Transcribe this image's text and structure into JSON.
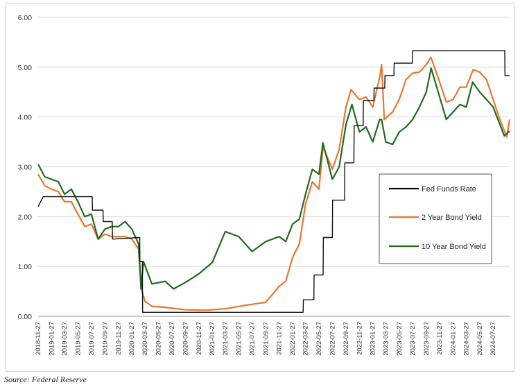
{
  "source_note": "Source: Federal Reserve",
  "chart_data": {
    "type": "line",
    "ylim": [
      0,
      6
    ],
    "yticks": [
      "0.00",
      "1.00",
      "2.00",
      "3.00",
      "4.00",
      "5.00",
      "6.00"
    ],
    "grid": "horizontal",
    "legend_position": "right",
    "x_tick_labels": [
      "2018-11-27",
      "2019-01-27",
      "2019-03-27",
      "2019-05-27",
      "2019-07-27",
      "2019-09-27",
      "2019-11-27",
      "2020-01-27",
      "2020-03-27",
      "2020-05-27",
      "2020-07-27",
      "2020-09-27",
      "2020-11-27",
      "2021-01-27",
      "2021-03-27",
      "2021-05-27",
      "2021-07-27",
      "2021-09-27",
      "2021-11-27",
      "2022-01-27",
      "2022-03-27",
      "2022-05-27",
      "2022-07-27",
      "2022-09-27",
      "2022-11-27",
      "2023-01-27",
      "2023-03-27",
      "2023-05-27",
      "2023-07-27",
      "2023-09-27",
      "2023-11-27",
      "2024-01-27",
      "2024-03-27",
      "2024-05-27",
      "2024-07-27"
    ],
    "series": [
      {
        "name": "Fed Funds Rate",
        "color": "#111111",
        "x": [
          "2018-11-27",
          "2018-12-20",
          "2019-07-31",
          "2019-08-01",
          "2019-09-18",
          "2019-09-19",
          "2019-10-30",
          "2019-10-31",
          "2020-03-03",
          "2020-03-04",
          "2020-03-15",
          "2020-03-16",
          "2022-03-16",
          "2022-03-17",
          "2022-05-04",
          "2022-05-05",
          "2022-06-15",
          "2022-06-16",
          "2022-07-27",
          "2022-07-28",
          "2022-09-21",
          "2022-09-22",
          "2022-11-02",
          "2022-11-03",
          "2022-12-14",
          "2022-12-15",
          "2023-02-01",
          "2023-02-02",
          "2023-03-22",
          "2023-03-23",
          "2023-05-03",
          "2023-05-04",
          "2023-07-26",
          "2023-07-27",
          "2024-09-18",
          "2024-09-19",
          "2024-10-10"
        ],
        "values": [
          2.2,
          2.4,
          2.4,
          2.13,
          2.13,
          1.9,
          1.9,
          1.55,
          1.58,
          1.1,
          1.1,
          0.08,
          0.08,
          0.33,
          0.33,
          0.83,
          0.83,
          1.58,
          1.58,
          2.33,
          2.33,
          3.08,
          3.08,
          3.83,
          3.83,
          4.33,
          4.33,
          4.58,
          4.58,
          4.83,
          4.83,
          5.08,
          5.08,
          5.33,
          5.33,
          4.83,
          4.83
        ]
      },
      {
        "name": "2 Year Bond Yield",
        "color": "#e8772e",
        "x": [
          "2018-11-27",
          "2018-12-27",
          "2019-01-27",
          "2019-02-27",
          "2019-03-27",
          "2019-04-27",
          "2019-05-27",
          "2019-06-27",
          "2019-07-27",
          "2019-08-27",
          "2019-09-27",
          "2019-10-27",
          "2019-11-27",
          "2019-12-27",
          "2020-01-27",
          "2020-02-27",
          "2020-03-10",
          "2020-03-27",
          "2020-04-27",
          "2020-06-27",
          "2020-09-27",
          "2020-12-27",
          "2021-03-27",
          "2021-06-27",
          "2021-09-27",
          "2021-11-27",
          "2021-12-27",
          "2022-01-27",
          "2022-02-27",
          "2022-03-27",
          "2022-04-27",
          "2022-05-27",
          "2022-06-15",
          "2022-07-27",
          "2022-08-27",
          "2022-09-27",
          "2022-10-20",
          "2022-11-27",
          "2022-12-27",
          "2023-01-27",
          "2023-02-27",
          "2023-03-08",
          "2023-03-20",
          "2023-04-27",
          "2023-05-27",
          "2023-06-27",
          "2023-07-27",
          "2023-08-27",
          "2023-09-27",
          "2023-10-18",
          "2023-11-27",
          "2023-12-27",
          "2024-01-27",
          "2024-02-27",
          "2024-03-27",
          "2024-04-27",
          "2024-05-27",
          "2024-06-27",
          "2024-07-27",
          "2024-08-27",
          "2024-09-27",
          "2024-10-10"
        ],
        "values": [
          2.85,
          2.62,
          2.55,
          2.5,
          2.3,
          2.3,
          2.05,
          1.8,
          1.85,
          1.55,
          1.65,
          1.6,
          1.6,
          1.6,
          1.55,
          1.35,
          0.55,
          0.3,
          0.2,
          0.18,
          0.13,
          0.12,
          0.15,
          0.22,
          0.28,
          0.6,
          0.7,
          1.18,
          1.45,
          2.25,
          2.7,
          2.55,
          3.4,
          2.95,
          3.35,
          4.2,
          4.55,
          4.35,
          4.4,
          4.2,
          4.8,
          5.05,
          3.95,
          4.1,
          4.35,
          4.75,
          4.88,
          4.9,
          5.05,
          5.2,
          4.7,
          4.3,
          4.35,
          4.6,
          4.6,
          4.95,
          4.9,
          4.75,
          4.35,
          3.95,
          3.6,
          3.95
        ]
      },
      {
        "name": "10 Year Bond Yield",
        "color": "#1e6b1e",
        "x": [
          "2018-11-27",
          "2018-12-27",
          "2019-01-27",
          "2019-02-27",
          "2019-03-27",
          "2019-04-27",
          "2019-05-27",
          "2019-06-27",
          "2019-07-27",
          "2019-08-27",
          "2019-09-27",
          "2019-10-27",
          "2019-11-27",
          "2019-12-27",
          "2020-01-27",
          "2020-02-27",
          "2020-03-09",
          "2020-03-20",
          "2020-04-27",
          "2020-06-27",
          "2020-08-04",
          "2020-09-27",
          "2020-11-27",
          "2021-01-27",
          "2021-03-27",
          "2021-05-27",
          "2021-07-27",
          "2021-09-27",
          "2021-11-27",
          "2021-12-27",
          "2022-01-27",
          "2022-02-27",
          "2022-03-27",
          "2022-04-27",
          "2022-05-27",
          "2022-06-14",
          "2022-07-27",
          "2022-08-27",
          "2022-09-27",
          "2022-10-24",
          "2022-11-27",
          "2022-12-27",
          "2023-01-27",
          "2023-02-27",
          "2023-03-08",
          "2023-03-27",
          "2023-04-27",
          "2023-05-27",
          "2023-06-27",
          "2023-07-27",
          "2023-08-27",
          "2023-09-27",
          "2023-10-19",
          "2023-11-27",
          "2023-12-27",
          "2024-01-27",
          "2024-02-27",
          "2024-03-27",
          "2024-04-25",
          "2024-05-27",
          "2024-06-27",
          "2024-07-27",
          "2024-08-27",
          "2024-09-16",
          "2024-10-10"
        ],
        "values": [
          3.05,
          2.8,
          2.75,
          2.7,
          2.45,
          2.55,
          2.3,
          2.0,
          2.05,
          1.55,
          1.75,
          1.8,
          1.8,
          1.9,
          1.75,
          1.45,
          0.55,
          1.1,
          0.65,
          0.7,
          0.55,
          0.68,
          0.85,
          1.08,
          1.7,
          1.6,
          1.3,
          1.5,
          1.6,
          1.5,
          1.85,
          1.95,
          2.45,
          2.95,
          2.85,
          3.48,
          2.75,
          3.0,
          3.85,
          4.25,
          3.7,
          3.8,
          3.5,
          3.95,
          3.95,
          3.5,
          3.45,
          3.7,
          3.8,
          3.95,
          4.2,
          4.5,
          4.98,
          4.4,
          3.95,
          4.1,
          4.25,
          4.2,
          4.7,
          4.5,
          4.35,
          4.2,
          3.85,
          3.62,
          3.72
        ]
      }
    ]
  }
}
